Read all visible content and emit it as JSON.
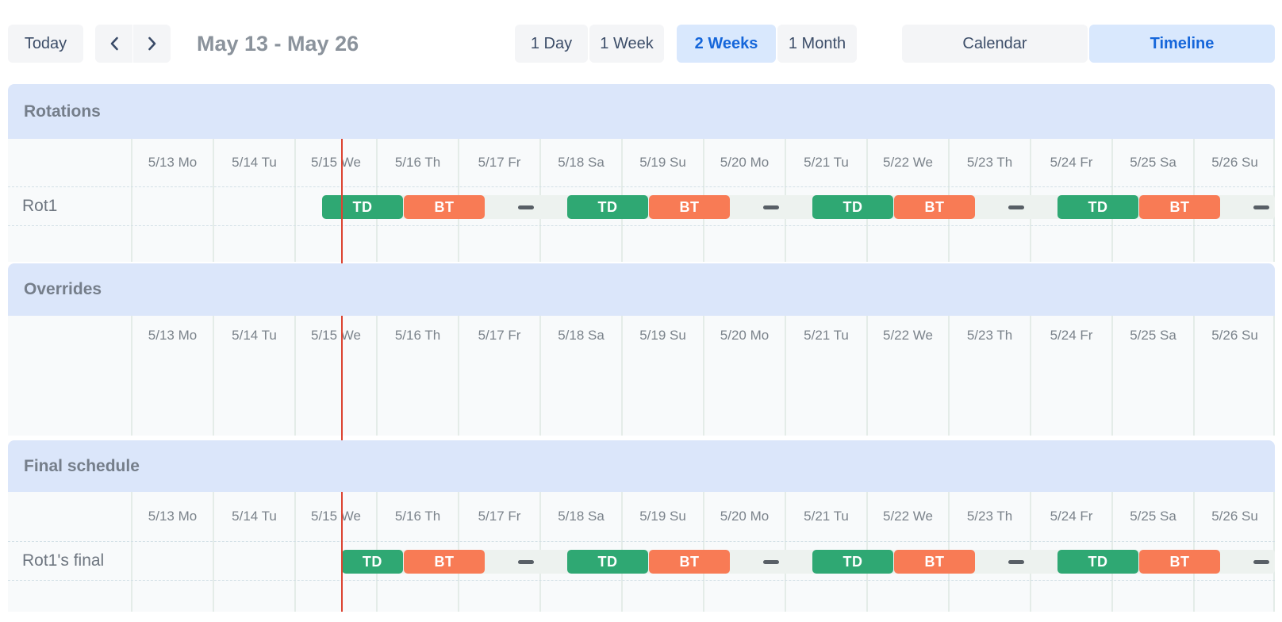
{
  "toolbar": {
    "today_button": "Today",
    "title": "May 13 - May 26",
    "range_options": [
      {
        "label": "1 Day",
        "selected": false
      },
      {
        "label": "1 Week",
        "selected": false
      },
      {
        "label": "2 Weeks",
        "selected": true
      },
      {
        "label": "1 Month",
        "selected": false
      }
    ],
    "view_options": [
      {
        "label": "Calendar",
        "selected": false
      },
      {
        "label": "Timeline",
        "selected": true
      }
    ]
  },
  "timeline": {
    "dates": [
      "5/13 Mo",
      "5/14 Tu",
      "5/15 We",
      "5/16 Th",
      "5/17 Fr",
      "5/18 Sa",
      "5/19 Su",
      "5/20 Mo",
      "5/21 Tu",
      "5/22 We",
      "5/23 Th",
      "5/24 Fr",
      "5/25 Sa",
      "5/26 Su"
    ],
    "now_day": 2.57,
    "sections": [
      {
        "id": "rotations",
        "title": "Rotations",
        "rows": [
          {
            "label": "Rot1",
            "strip_start_day": 2.33,
            "shifts": [
              {
                "label": "TD",
                "kind": "td",
                "start_day": 2.33,
                "end_day": 3.33
              },
              {
                "label": "BT",
                "kind": "bt",
                "start_day": 3.33,
                "end_day": 4.33
              },
              {
                "label": "TD",
                "kind": "td",
                "start_day": 5.33,
                "end_day": 6.33
              },
              {
                "label": "BT",
                "kind": "bt",
                "start_day": 6.33,
                "end_day": 7.33
              },
              {
                "label": "TD",
                "kind": "td",
                "start_day": 8.33,
                "end_day": 9.33
              },
              {
                "label": "BT",
                "kind": "bt",
                "start_day": 9.33,
                "end_day": 10.33
              },
              {
                "label": "TD",
                "kind": "td",
                "start_day": 11.33,
                "end_day": 12.33
              },
              {
                "label": "BT",
                "kind": "bt",
                "start_day": 12.33,
                "end_day": 13.33
              }
            ],
            "gap_dashes_day": [
              4.83,
              7.83,
              10.83,
              13.83
            ]
          }
        ]
      },
      {
        "id": "overrides",
        "title": "Overrides",
        "rows": []
      },
      {
        "id": "final-schedule",
        "title": "Final schedule",
        "rows": [
          {
            "label": "Rot1's final",
            "strip_start_day": 2.57,
            "shifts": [
              {
                "label": "TD",
                "kind": "td",
                "start_day": 2.57,
                "end_day": 3.33
              },
              {
                "label": "BT",
                "kind": "bt",
                "start_day": 3.33,
                "end_day": 4.33
              },
              {
                "label": "TD",
                "kind": "td",
                "start_day": 5.33,
                "end_day": 6.33
              },
              {
                "label": "BT",
                "kind": "bt",
                "start_day": 6.33,
                "end_day": 7.33
              },
              {
                "label": "TD",
                "kind": "td",
                "start_day": 8.33,
                "end_day": 9.33
              },
              {
                "label": "BT",
                "kind": "bt",
                "start_day": 9.33,
                "end_day": 10.33
              },
              {
                "label": "TD",
                "kind": "td",
                "start_day": 11.33,
                "end_day": 12.33
              },
              {
                "label": "BT",
                "kind": "bt",
                "start_day": 12.33,
                "end_day": 13.33
              }
            ],
            "gap_dashes_day": [
              4.83,
              7.83,
              10.83,
              13.83
            ]
          }
        ]
      }
    ]
  },
  "colors": {
    "shift_td": "#2fa873",
    "shift_bt": "#f87b55",
    "now_line": "#dc4330",
    "section_band_bg": "#dbe6fa",
    "selected_bg": "#d9e8fd",
    "selected_text": "#1566da",
    "gap_strip": "#edf2ef",
    "gap_dash": "#585f66"
  }
}
